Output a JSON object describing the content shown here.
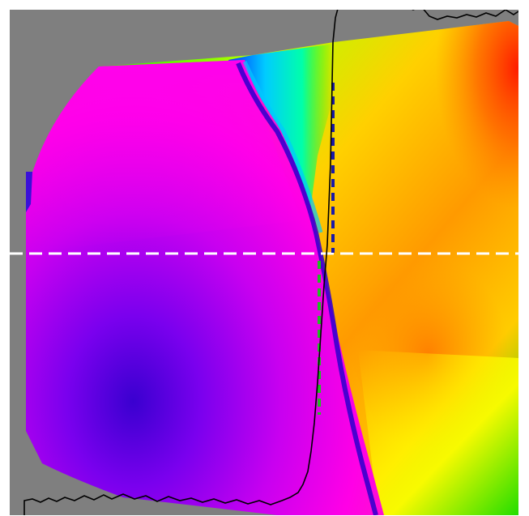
{
  "image": {
    "kind": "false-color phase / orientation map",
    "background_color": "#7f7f7f",
    "palette": [
      "#ff00ff",
      "#6a00ff",
      "#2400cc",
      "#00ccff",
      "#00ff00",
      "#ffff00",
      "#ffa500",
      "#ff3300"
    ],
    "dashed_line_colors": {
      "horizontal": "#ffffff",
      "upper_vertical": "#1a1aa8",
      "lower_vertical": "#22bb22"
    },
    "profile_color": "#000000"
  }
}
